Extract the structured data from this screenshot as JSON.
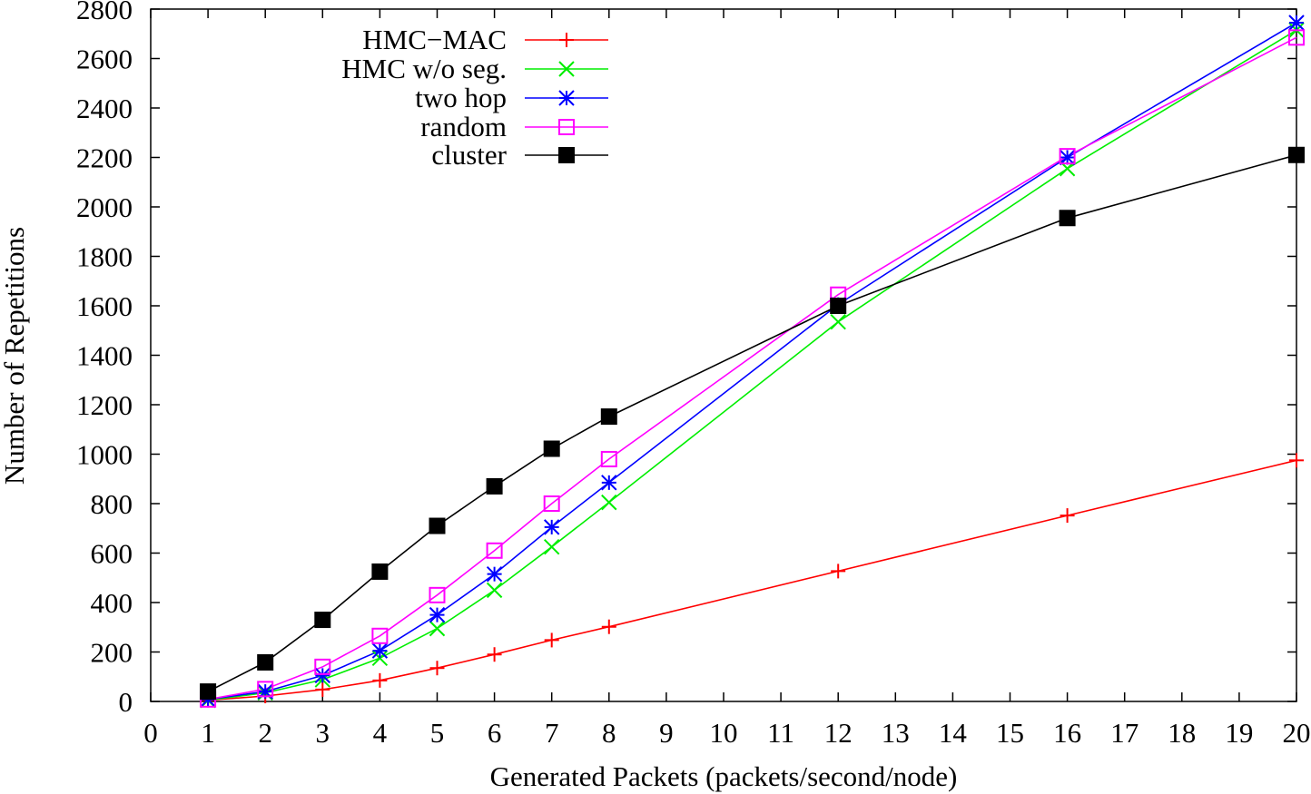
{
  "chart_data": {
    "type": "line",
    "title": "",
    "xlabel": "Generated Packets (packets/second/node)",
    "ylabel": "Number of Repetitions",
    "xlim": [
      0,
      20
    ],
    "ylim": [
      0,
      2800
    ],
    "x_ticks": [
      "0",
      "1",
      "2",
      "3",
      "4",
      "5",
      "6",
      "7",
      "8",
      "9",
      "10",
      "11",
      "12",
      "13",
      "14",
      "15",
      "16",
      "17",
      "18",
      "19",
      "20"
    ],
    "y_ticks": [
      "0",
      "200",
      "400",
      "600",
      "800",
      "1000",
      "1200",
      "1400",
      "1600",
      "1800",
      "2000",
      "2200",
      "2400",
      "2600",
      "2800"
    ],
    "grid": false,
    "legend_position": "top-left",
    "x": [
      1,
      2,
      3,
      4,
      5,
      6,
      7,
      8,
      12,
      16,
      20
    ],
    "series": [
      {
        "name": "HMC−MAC",
        "color": "#ff0000",
        "marker": "plus",
        "values": [
          5,
          22,
          48,
          85,
          135,
          190,
          248,
          302,
          527,
          752,
          975
        ]
      },
      {
        "name": "HMC w/o seg.",
        "color": "#00ee00",
        "marker": "cross",
        "values": [
          5,
          35,
          88,
          175,
          295,
          450,
          625,
          805,
          1535,
          2155,
          2715
        ]
      },
      {
        "name": "two hop",
        "color": "#0000ff",
        "marker": "star",
        "values": [
          8,
          40,
          105,
          205,
          350,
          515,
          705,
          885,
          1605,
          2200,
          2745
        ]
      },
      {
        "name": "random",
        "color": "#ff00ff",
        "marker": "square-open",
        "values": [
          8,
          50,
          140,
          265,
          430,
          610,
          800,
          980,
          1645,
          2205,
          2685
        ]
      },
      {
        "name": "cluster",
        "color": "#000000",
        "marker": "square-filled",
        "values": [
          40,
          158,
          330,
          525,
          710,
          870,
          1022,
          1152,
          1600,
          1955,
          2210
        ]
      }
    ]
  }
}
